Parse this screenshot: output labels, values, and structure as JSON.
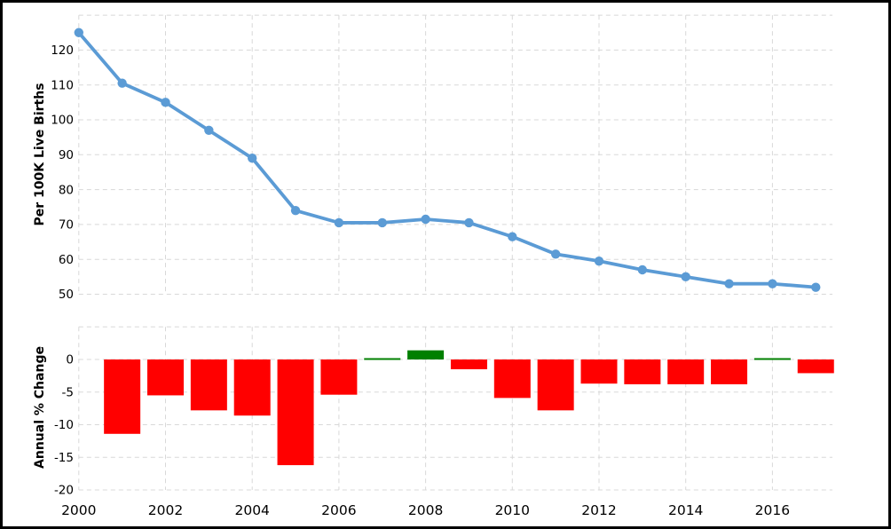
{
  "chart_data": [
    {
      "type": "line",
      "title": "",
      "ylabel": "Per 100K Live Births",
      "x": [
        2000,
        2001,
        2002,
        2003,
        2004,
        2005,
        2006,
        2007,
        2008,
        2009,
        2010,
        2011,
        2012,
        2013,
        2014,
        2015,
        2016,
        2017
      ],
      "y": [
        125,
        110.5,
        105,
        97,
        89,
        74,
        70.5,
        70.5,
        71.5,
        70.5,
        66.5,
        61.5,
        59.5,
        57,
        55,
        53,
        53,
        52
      ],
      "ylim": [
        50,
        130
      ],
      "yticks": [
        120,
        110,
        100,
        90,
        80,
        70,
        60,
        50
      ],
      "grid_lines": [
        130,
        120,
        110,
        100,
        90,
        80,
        70,
        60,
        50
      ],
      "grid": true,
      "legend": "none"
    },
    {
      "type": "bar",
      "title": "",
      "ylabel": "Annual % Change",
      "x": [
        2001,
        2002,
        2003,
        2004,
        2005,
        2006,
        2007,
        2008,
        2009,
        2010,
        2011,
        2012,
        2013,
        2014,
        2015,
        2016,
        2017
      ],
      "values": [
        -11.4,
        -5.5,
        -7.8,
        -8.6,
        -16.2,
        -5.4,
        0.0,
        1.4,
        -1.5,
        -5.9,
        -7.8,
        -3.7,
        -3.8,
        -3.8,
        -3.8,
        0.0,
        -2.1
      ],
      "ylim": [
        -20,
        5
      ],
      "yticks": [
        0,
        -5,
        -10,
        -15,
        -20
      ],
      "grid_lines": [
        5,
        0,
        -5,
        -10,
        -15,
        -20
      ],
      "grid": true,
      "legend": "none"
    }
  ],
  "x_axis": {
    "ticks": [
      2000,
      2002,
      2004,
      2006,
      2008,
      2010,
      2012,
      2014,
      2016
    ]
  },
  "style": {
    "line_color": "#5b9bd5",
    "marker_color": "#5b9bd5",
    "positive_color": "#008000",
    "negative_color": "#ff0000",
    "grid_color": "#d8d8d8",
    "border_color": "#000000",
    "background_color": "#ffffff"
  }
}
